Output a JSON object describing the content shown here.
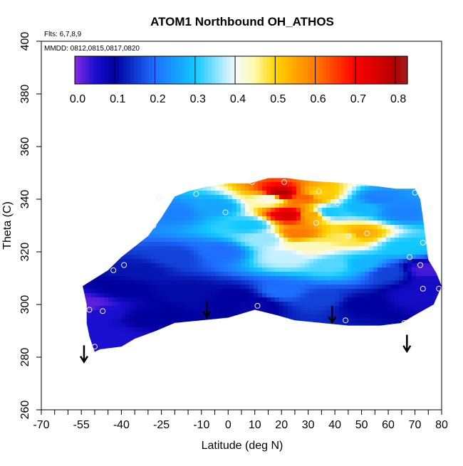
{
  "chart_data": {
    "type": "heatmap",
    "title": "ATOM1 Northbound OH_ATHOS",
    "note_flights": "Flts: 6,7,8,9",
    "note_dates": "MMDD: 0812,0815,0817,0820",
    "xlabel": "Latitude (deg N)",
    "ylabel": "Theta (C)",
    "xlim": [
      -70,
      80
    ],
    "ylim": [
      260,
      400
    ],
    "x_tick_labels": [
      "-70",
      "-55",
      "-40",
      "-25",
      "-10",
      "0",
      "10",
      "20",
      "30",
      "40",
      "50",
      "60",
      "70",
      "80"
    ],
    "x_tick_values": [
      -70,
      -55,
      -40,
      -25,
      -10,
      0,
      10,
      20,
      30,
      40,
      50,
      60,
      70,
      80
    ],
    "y_tick_labels": [
      "260",
      "280",
      "300",
      "320",
      "340",
      "360",
      "380",
      "400"
    ],
    "y_tick_values": [
      260,
      280,
      300,
      320,
      340,
      360,
      380,
      400
    ],
    "colorbar": {
      "range": [
        0,
        0.83
      ],
      "tick_labels": [
        "0.0",
        "0.1",
        "0.2",
        "0.3",
        "0.4",
        "0.5",
        "0.6",
        "0.7",
        "0.8"
      ],
      "tick_values": [
        0,
        0.1,
        0.2,
        0.3,
        0.4,
        0.5,
        0.6,
        0.7,
        0.8
      ],
      "stops": [
        {
          "v": 0.0,
          "color": "#8a2be2"
        },
        {
          "v": 0.05,
          "color": "#1a0fcf"
        },
        {
          "v": 0.1,
          "color": "#00009e"
        },
        {
          "v": 0.2,
          "color": "#1e6fff"
        },
        {
          "v": 0.3,
          "color": "#10c8ff"
        },
        {
          "v": 0.4,
          "color": "#f4faff"
        },
        {
          "v": 0.45,
          "color": "#fff9a8"
        },
        {
          "v": 0.5,
          "color": "#ffd400"
        },
        {
          "v": 0.6,
          "color": "#ff7a00"
        },
        {
          "v": 0.7,
          "color": "#ff0000"
        },
        {
          "v": 0.8,
          "color": "#b40000"
        },
        {
          "v": 0.83,
          "color": "#9a2020"
        }
      ]
    },
    "field_outline": [
      [
        -54.5,
        307
      ],
      [
        -45,
        313
      ],
      [
        -40,
        318
      ],
      [
        -30,
        326
      ],
      [
        -25,
        333
      ],
      [
        -20,
        341
      ],
      [
        -15,
        343
      ],
      [
        -7,
        345
      ],
      [
        0,
        346
      ],
      [
        8,
        346
      ],
      [
        15,
        348
      ],
      [
        22,
        348
      ],
      [
        30,
        347
      ],
      [
        45,
        346
      ],
      [
        55,
        345
      ],
      [
        63,
        344
      ],
      [
        70,
        344
      ],
      [
        72,
        340
      ],
      [
        73,
        333
      ],
      [
        74,
        325
      ],
      [
        75,
        317
      ],
      [
        78,
        312
      ],
      [
        80,
        307
      ],
      [
        77,
        300
      ],
      [
        70,
        296
      ],
      [
        65,
        293
      ],
      [
        57,
        292
      ],
      [
        45,
        292
      ],
      [
        35,
        293
      ],
      [
        25,
        294
      ],
      [
        18,
        296
      ],
      [
        10,
        298
      ],
      [
        0,
        295
      ],
      [
        -10,
        294
      ],
      [
        -20,
        293
      ],
      [
        -27,
        290
      ],
      [
        -35,
        287
      ],
      [
        -40,
        284
      ],
      [
        -48,
        283
      ],
      [
        -50,
        282
      ],
      [
        -52,
        288
      ],
      [
        -53,
        293
      ],
      [
        -53,
        300
      ],
      [
        -54.5,
        307
      ]
    ],
    "field_samples": [
      {
        "lat": -52,
        "theta": 300,
        "v": 0.02
      },
      {
        "lat": -47,
        "theta": 297,
        "v": 0.05
      },
      {
        "lat": -45,
        "theta": 288,
        "v": 0.05
      },
      {
        "lat": -40,
        "theta": 306,
        "v": 0.1
      },
      {
        "lat": -33,
        "theta": 313,
        "v": 0.12
      },
      {
        "lat": -30,
        "theta": 295,
        "v": 0.1
      },
      {
        "lat": -20,
        "theta": 318,
        "v": 0.16
      },
      {
        "lat": -20,
        "theta": 335,
        "v": 0.22
      },
      {
        "lat": -15,
        "theta": 305,
        "v": 0.11
      },
      {
        "lat": -5,
        "theta": 337,
        "v": 0.26
      },
      {
        "lat": -3,
        "theta": 320,
        "v": 0.2
      },
      {
        "lat": 3,
        "theta": 303,
        "v": 0.1
      },
      {
        "lat": 8,
        "theta": 330,
        "v": 0.3
      },
      {
        "lat": 14,
        "theta": 325,
        "v": 0.36
      },
      {
        "lat": 16,
        "theta": 340,
        "v": 0.41
      },
      {
        "lat": 20,
        "theta": 342,
        "v": 0.8
      },
      {
        "lat": 23,
        "theta": 334,
        "v": 0.75
      },
      {
        "lat": 26,
        "theta": 327,
        "v": 0.6
      },
      {
        "lat": 29,
        "theta": 341,
        "v": 0.62
      },
      {
        "lat": 31,
        "theta": 334,
        "v": 0.55
      },
      {
        "lat": 33,
        "theta": 342,
        "v": 0.5
      },
      {
        "lat": 38,
        "theta": 335,
        "v": 0.3
      },
      {
        "lat": 22,
        "theta": 318,
        "v": 0.38
      },
      {
        "lat": 30,
        "theta": 322,
        "v": 0.44
      },
      {
        "lat": 45,
        "theta": 326,
        "v": 0.47
      },
      {
        "lat": 49,
        "theta": 327,
        "v": 0.55
      },
      {
        "lat": 50,
        "theta": 337,
        "v": 0.28
      },
      {
        "lat": 56,
        "theta": 340,
        "v": 0.22
      },
      {
        "lat": 65,
        "theta": 335,
        "v": 0.22
      },
      {
        "lat": 66,
        "theta": 322,
        "v": 0.3
      },
      {
        "lat": 40,
        "theta": 315,
        "v": 0.33
      },
      {
        "lat": 50,
        "theta": 315,
        "v": 0.28
      },
      {
        "lat": 60,
        "theta": 312,
        "v": 0.16
      },
      {
        "lat": 20,
        "theta": 305,
        "v": 0.2
      },
      {
        "lat": 35,
        "theta": 302,
        "v": 0.16
      },
      {
        "lat": 50,
        "theta": 300,
        "v": 0.1
      },
      {
        "lat": 70,
        "theta": 303,
        "v": 0.06
      },
      {
        "lat": 74,
        "theta": 313,
        "v": 0.03
      },
      {
        "lat": 77,
        "theta": 308,
        "v": 0.06
      },
      {
        "lat": 10,
        "theta": 300,
        "v": 0.09
      }
    ],
    "obs_points": [
      {
        "lat": -52,
        "theta": 298
      },
      {
        "lat": -47,
        "theta": 297.5
      },
      {
        "lat": -50,
        "theta": 284
      },
      {
        "lat": -43,
        "theta": 313
      },
      {
        "lat": -39,
        "theta": 315
      },
      {
        "lat": -28,
        "theta": 330
      },
      {
        "lat": -26,
        "theta": 340.5
      },
      {
        "lat": -12,
        "theta": 342
      },
      {
        "lat": -1,
        "theta": 335
      },
      {
        "lat": 9,
        "theta": 346.5
      },
      {
        "lat": 21,
        "theta": 346.5
      },
      {
        "lat": 34,
        "theta": 343
      },
      {
        "lat": 33,
        "theta": 331
      },
      {
        "lat": 41,
        "theta": 338.5
      },
      {
        "lat": 45,
        "theta": 326
      },
      {
        "lat": 52,
        "theta": 327
      },
      {
        "lat": 70,
        "theta": 342.5
      },
      {
        "lat": 73,
        "theta": 323.5
      },
      {
        "lat": 68,
        "theta": 318
      },
      {
        "lat": 72,
        "theta": 315
      },
      {
        "lat": 73,
        "theta": 306
      },
      {
        "lat": 11,
        "theta": 299.5
      },
      {
        "lat": 44,
        "theta": 294
      },
      {
        "lat": 66,
        "theta": 293
      },
      {
        "lat": 79,
        "theta": 306
      }
    ],
    "arrows": [
      {
        "lat": -54,
        "theta": 280
      },
      {
        "lat": -8,
        "theta": 297
      },
      {
        "lat": 39,
        "theta": 295
      },
      {
        "lat": 67,
        "theta": 284
      }
    ]
  }
}
